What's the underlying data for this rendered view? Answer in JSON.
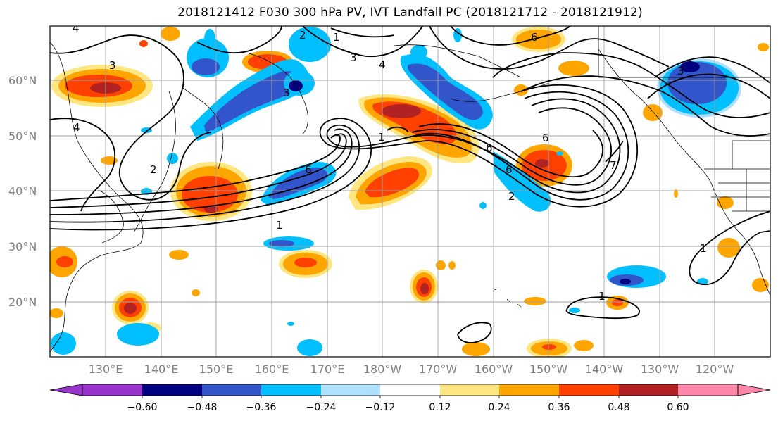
{
  "title": "2018121412 F030 300 hPa PV, IVT Landfall PC (2018121712 - 2018121912)",
  "lat_labels": [
    "60°N",
    "50°N",
    "40°N",
    "30°N",
    "20°N"
  ],
  "lon_labels": [
    "130°E",
    "140°E",
    "150°E",
    "160°E",
    "170°E",
    "180°W",
    "170°W",
    "160°W",
    "150°W",
    "140°W",
    "130°W",
    "120°W"
  ],
  "colorbar": {
    "ticks": [
      "−0.60",
      "−0.48",
      "−0.36",
      "−0.24",
      "−0.12",
      "0.12",
      "0.24",
      "0.36",
      "0.48",
      "0.60"
    ],
    "colors": {
      "under": "#9933cc",
      "neg_060": "#000080",
      "neg_048": "#3355cc",
      "neg_036": "#00bfff",
      "neg_024": "#b0e0ff",
      "neutral": "#ffffff",
      "pos_012": "#ffe680",
      "pos_024": "#ffa500",
      "pos_036": "#ff4000",
      "pos_048": "#b22222",
      "over": "#ff88aa"
    }
  },
  "contour_labels": [
    "4",
    "2",
    "1",
    "3",
    "4",
    "3",
    "3",
    "2",
    "4",
    "6",
    "1",
    "6",
    "6",
    "6",
    "3",
    "1",
    "1",
    "1",
    "6",
    "7",
    "2"
  ]
}
